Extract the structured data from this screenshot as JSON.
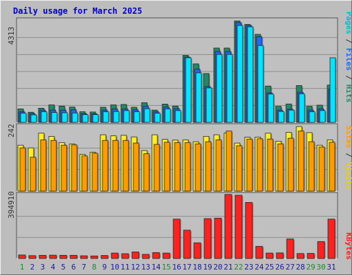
{
  "title": "Daily usage for March 2025",
  "colors": {
    "background": "#bdbdbd",
    "panel": "#c0c0c0",
    "title": "#0000cc",
    "grid": "#8c8c8c",
    "pages": "#00e6ff",
    "files": "#1f66ff",
    "hits": "#1f8a6a",
    "visits": "#ffee22",
    "sites": "#ff9a00",
    "kbytes": "#ff2020",
    "day_weekday": "#1a1a99",
    "day_weekend": "#1a8a2a"
  },
  "chart_data": [
    {
      "type": "bar",
      "panel": "top",
      "ymax_label": "4313",
      "ylim": [
        0,
        4313
      ],
      "legend": {
        "pages": "Pages",
        "files": "Files",
        "hits": "Hits",
        "sep": "/"
      },
      "series": [
        {
          "name": "Hits",
          "key": "hits",
          "values": [
            570,
            430,
            600,
            740,
            690,
            650,
            450,
            440,
            640,
            740,
            760,
            640,
            835,
            520,
            775,
            690,
            2840,
            2480,
            2070,
            3150,
            3150,
            4300,
            4150,
            3730,
            1540,
            680,
            780,
            1560,
            680,
            730,
            1580
          ]
        },
        {
          "name": "Files",
          "key": "files",
          "values": [
            445,
            370,
            520,
            520,
            520,
            530,
            370,
            360,
            520,
            570,
            570,
            530,
            680,
            445,
            650,
            580,
            2770,
            2250,
            1520,
            3000,
            3000,
            4230,
            4110,
            3630,
            1250,
            520,
            560,
            1280,
            520,
            570,
            1410
          ]
        },
        {
          "name": "Pages",
          "key": "pages",
          "values": [
            390,
            320,
            450,
            420,
            410,
            400,
            330,
            330,
            450,
            460,
            500,
            450,
            580,
            390,
            570,
            500,
            2740,
            2100,
            1460,
            2880,
            2880,
            4110,
            4050,
            3260,
            1200,
            460,
            520,
            1210,
            450,
            500,
            2740
          ]
        }
      ]
    },
    {
      "type": "bar",
      "panel": "middle",
      "ymax_label": "242",
      "ylim": [
        0,
        242
      ],
      "legend": {
        "sites": "Sites",
        "visits": "Visits",
        "sep": "/"
      },
      "series": [
        {
          "name": "Visits",
          "key": "visits",
          "values": [
            172,
            162,
            217,
            205,
            182,
            177,
            138,
            146,
            211,
            207,
            209,
            203,
            152,
            211,
            194,
            191,
            192,
            185,
            205,
            211,
            218,
            180,
            202,
            202,
            217,
            187,
            220,
            242,
            219,
            172,
            192
          ]
        },
        {
          "name": "Sites",
          "key": "sites",
          "values": [
            162,
            127,
            192,
            190,
            172,
            173,
            132,
            142,
            190,
            190,
            190,
            180,
            140,
            175,
            183,
            182,
            182,
            177,
            185,
            192,
            225,
            170,
            195,
            196,
            195,
            177,
            198,
            225,
            185,
            165,
            183
          ]
        }
      ]
    },
    {
      "type": "bar",
      "panel": "bottom",
      "ymax_label": "394910",
      "ylim": [
        0,
        394910
      ],
      "legend": {
        "kbytes": "KBytes"
      },
      "series": [
        {
          "name": "KBytes",
          "key": "kbytes",
          "values": [
            22000,
            18000,
            20000,
            21000,
            20000,
            20000,
            17000,
            16000,
            19000,
            34000,
            30000,
            41000,
            26000,
            37000,
            34000,
            246000,
            177000,
            98000,
            249000,
            252000,
            400000,
            395000,
            350000,
            76000,
            34000,
            35000,
            122000,
            31000,
            32000,
            106000,
            246000
          ]
        }
      ]
    }
  ],
  "days": [
    "1",
    "2",
    "3",
    "4",
    "5",
    "6",
    "7",
    "8",
    "9",
    "10",
    "11",
    "12",
    "13",
    "14",
    "15",
    "16",
    "17",
    "18",
    "19",
    "20",
    "21",
    "22",
    "23",
    "24",
    "25",
    "26",
    "27",
    "28",
    "29",
    "30",
    "31"
  ],
  "weekend_days": [
    1,
    8,
    15,
    22,
    29,
    30
  ]
}
